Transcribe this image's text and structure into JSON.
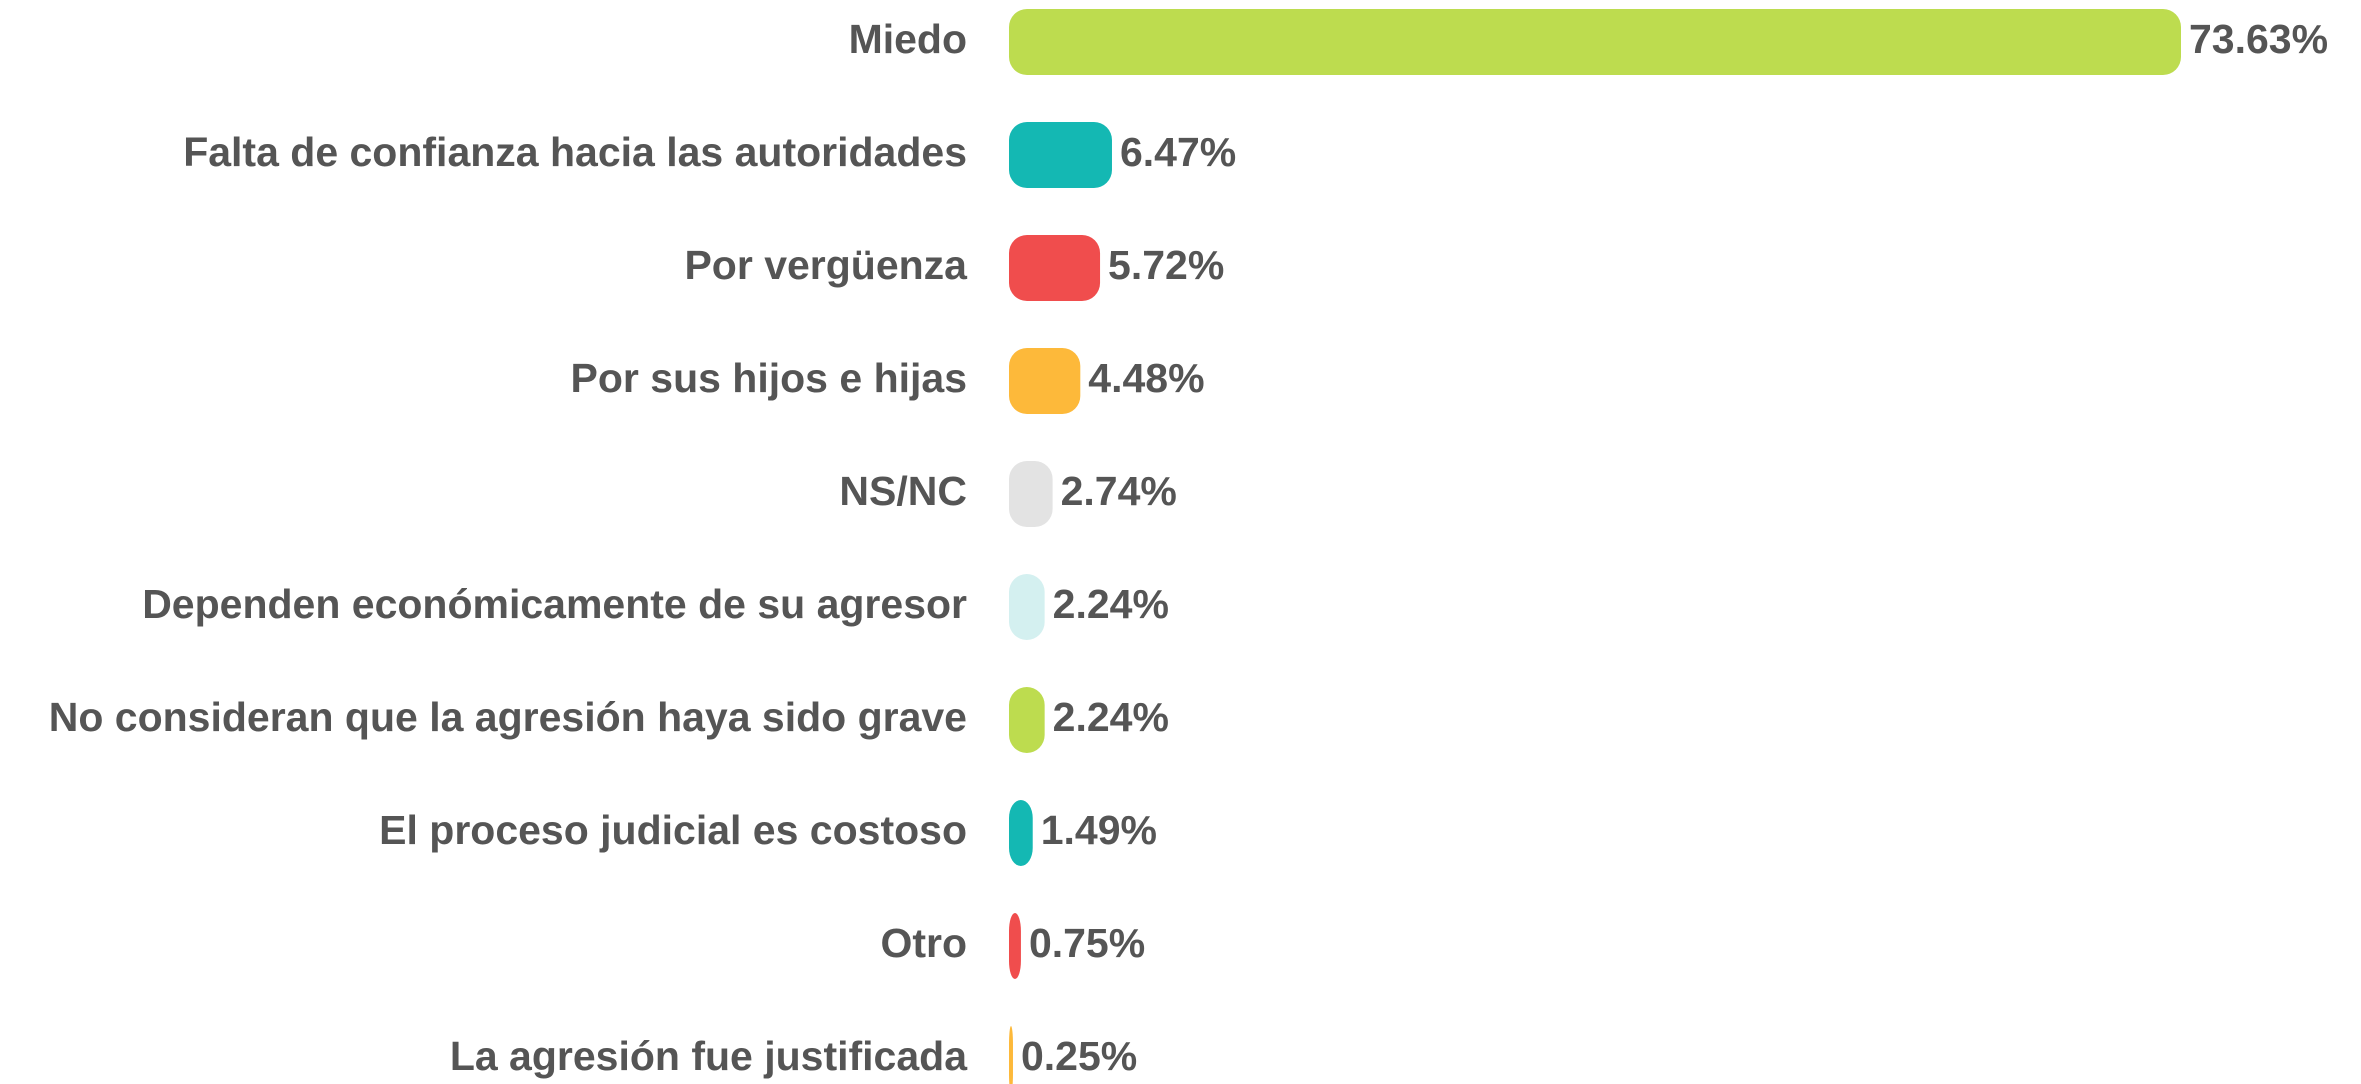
{
  "chart_data": {
    "type": "bar",
    "orientation": "horizontal",
    "categories": [
      "Miedo",
      "Falta de confianza hacia las autoridades",
      "Por vergüenza",
      "Por sus hijos e hijas",
      "NS/NC",
      "Dependen económicamente de su agresor",
      "No consideran que la agresión haya sido grave",
      "El proceso judicial es costoso",
      "Otro",
      "La agresión fue justificada"
    ],
    "values": [
      73.63,
      6.47,
      5.72,
      4.48,
      2.74,
      2.24,
      2.24,
      1.49,
      0.75,
      0.25
    ],
    "value_labels": [
      "73.63%",
      "6.47%",
      "5.72%",
      "4.48%",
      "2.74%",
      "2.24%",
      "2.24%",
      "1.49%",
      "0.75%",
      "0.25%"
    ],
    "colors": [
      "#bddc4f",
      "#14b8b3",
      "#f04d4d",
      "#fdb93a",
      "#e3e3e3",
      "#d4f0f0",
      "#bddc4f",
      "#14b8b3",
      "#f04d4d",
      "#fdb93a"
    ]
  }
}
